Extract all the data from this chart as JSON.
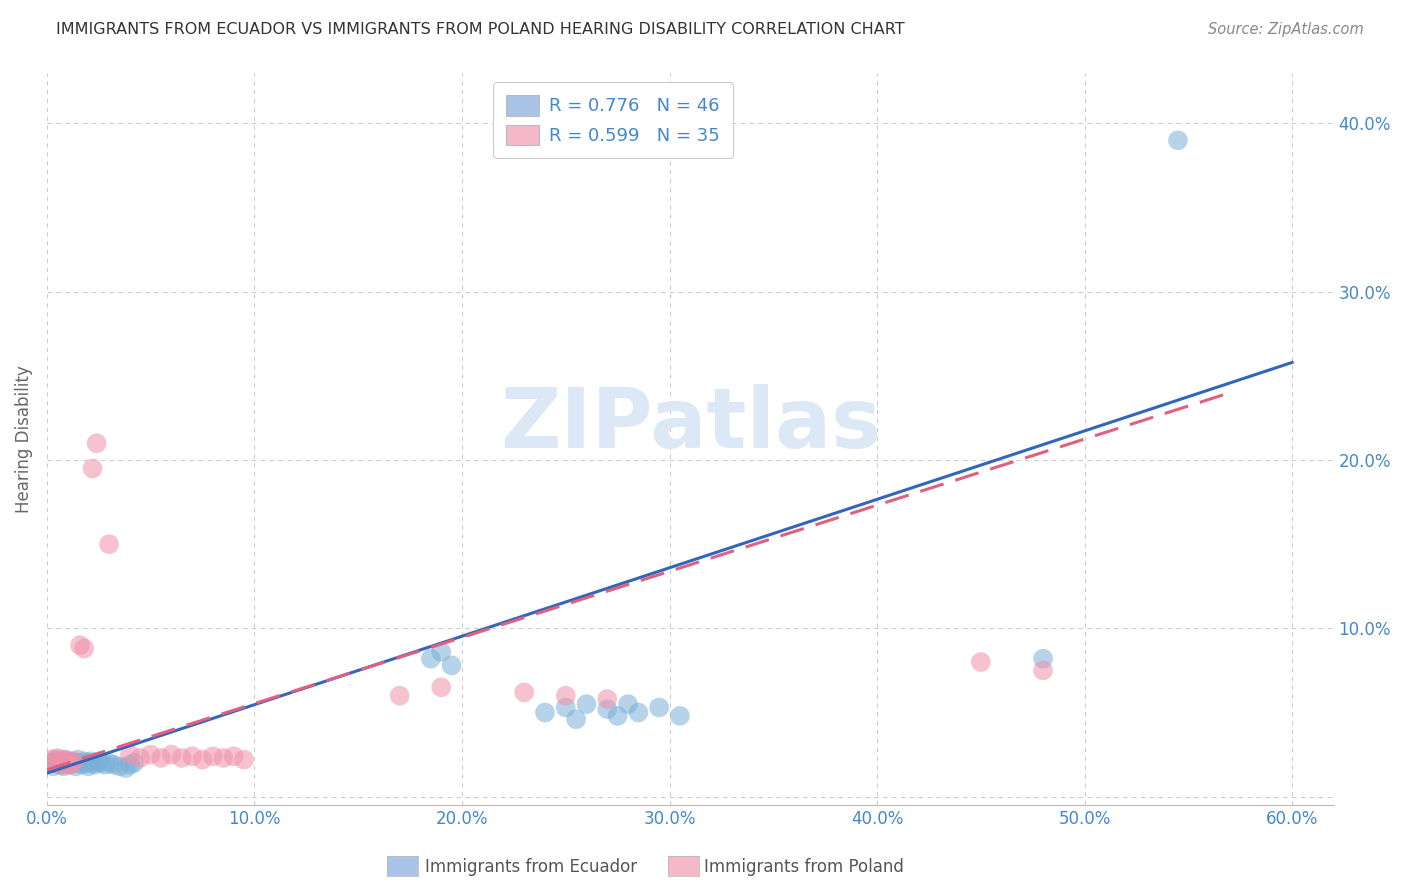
{
  "title": "IMMIGRANTS FROM ECUADOR VS IMMIGRANTS FROM POLAND HEARING DISABILITY CORRELATION CHART",
  "source": "Source: ZipAtlas.com",
  "ylabel": "Hearing Disability",
  "xlim": [
    0.0,
    0.62
  ],
  "ylim": [
    -0.005,
    0.43
  ],
  "xticks": [
    0.0,
    0.1,
    0.2,
    0.3,
    0.4,
    0.5,
    0.6
  ],
  "yticks": [
    0.0,
    0.1,
    0.2,
    0.3,
    0.4
  ],
  "xtick_labels": [
    "0.0%",
    "10.0%",
    "20.0%",
    "30.0%",
    "40.0%",
    "50.0%",
    "60.0%"
  ],
  "ytick_labels": [
    "",
    "10.0%",
    "20.0%",
    "30.0%",
    "40.0%"
  ],
  "legend_items": [
    {
      "label": "R = 0.776   N = 46",
      "facecolor": "#aac4e8"
    },
    {
      "label": "R = 0.599   N = 35",
      "facecolor": "#f5b8c8"
    }
  ],
  "ecuador_scatter": [
    [
      0.002,
      0.02
    ],
    [
      0.003,
      0.018
    ],
    [
      0.004,
      0.022
    ],
    [
      0.005,
      0.021
    ],
    [
      0.006,
      0.019
    ],
    [
      0.007,
      0.02
    ],
    [
      0.008,
      0.018
    ],
    [
      0.009,
      0.022
    ],
    [
      0.01,
      0.02
    ],
    [
      0.011,
      0.019
    ],
    [
      0.012,
      0.021
    ],
    [
      0.013,
      0.02
    ],
    [
      0.014,
      0.018
    ],
    [
      0.015,
      0.022
    ],
    [
      0.016,
      0.02
    ],
    [
      0.017,
      0.019
    ],
    [
      0.018,
      0.021
    ],
    [
      0.019,
      0.02
    ],
    [
      0.02,
      0.018
    ],
    [
      0.021,
      0.021
    ],
    [
      0.022,
      0.02
    ],
    [
      0.023,
      0.019
    ],
    [
      0.025,
      0.021
    ],
    [
      0.026,
      0.02
    ],
    [
      0.028,
      0.019
    ],
    [
      0.03,
      0.02
    ],
    [
      0.032,
      0.019
    ],
    [
      0.035,
      0.018
    ],
    [
      0.038,
      0.017
    ],
    [
      0.04,
      0.019
    ],
    [
      0.042,
      0.02
    ],
    [
      0.185,
      0.082
    ],
    [
      0.19,
      0.086
    ],
    [
      0.195,
      0.078
    ],
    [
      0.24,
      0.05
    ],
    [
      0.25,
      0.053
    ],
    [
      0.255,
      0.046
    ],
    [
      0.26,
      0.055
    ],
    [
      0.27,
      0.052
    ],
    [
      0.275,
      0.048
    ],
    [
      0.28,
      0.055
    ],
    [
      0.285,
      0.05
    ],
    [
      0.295,
      0.053
    ],
    [
      0.305,
      0.048
    ],
    [
      0.48,
      0.082
    ],
    [
      0.545,
      0.39
    ]
  ],
  "poland_scatter": [
    [
      0.002,
      0.022
    ],
    [
      0.004,
      0.02
    ],
    [
      0.005,
      0.023
    ],
    [
      0.006,
      0.021
    ],
    [
      0.007,
      0.019
    ],
    [
      0.008,
      0.022
    ],
    [
      0.009,
      0.02
    ],
    [
      0.01,
      0.021
    ],
    [
      0.011,
      0.019
    ],
    [
      0.012,
      0.02
    ],
    [
      0.013,
      0.021
    ],
    [
      0.016,
      0.09
    ],
    [
      0.018,
      0.088
    ],
    [
      0.022,
      0.195
    ],
    [
      0.024,
      0.21
    ],
    [
      0.03,
      0.15
    ],
    [
      0.04,
      0.025
    ],
    [
      0.045,
      0.023
    ],
    [
      0.05,
      0.025
    ],
    [
      0.055,
      0.023
    ],
    [
      0.06,
      0.025
    ],
    [
      0.065,
      0.023
    ],
    [
      0.07,
      0.024
    ],
    [
      0.075,
      0.022
    ],
    [
      0.08,
      0.024
    ],
    [
      0.085,
      0.023
    ],
    [
      0.09,
      0.024
    ],
    [
      0.095,
      0.022
    ],
    [
      0.17,
      0.06
    ],
    [
      0.19,
      0.065
    ],
    [
      0.23,
      0.062
    ],
    [
      0.25,
      0.06
    ],
    [
      0.27,
      0.058
    ],
    [
      0.45,
      0.08
    ],
    [
      0.48,
      0.075
    ]
  ],
  "ecuador_line_x": [
    0.0,
    0.6
  ],
  "ecuador_line_y": [
    0.014,
    0.258
  ],
  "poland_line_x": [
    0.0,
    0.57
  ],
  "poland_line_y": [
    0.016,
    0.24
  ],
  "ecuador_color": "#7ab0d8",
  "poland_color": "#f090a8",
  "ecuador_line_color": "#3366bb",
  "poland_line_color": "#e06080",
  "background_color": "#ffffff",
  "grid_color": "#cccccc",
  "title_color": "#333333",
  "axis_tick_color": "#4488cc",
  "ylabel_color": "#666666",
  "watermark_text": "ZIPatlas",
  "watermark_color": "#dce8f5",
  "bottom_legend": [
    {
      "label": "Immigrants from Ecuador",
      "color": "#aac4e8"
    },
    {
      "label": "Immigrants from Poland",
      "color": "#f5b8c8"
    }
  ]
}
